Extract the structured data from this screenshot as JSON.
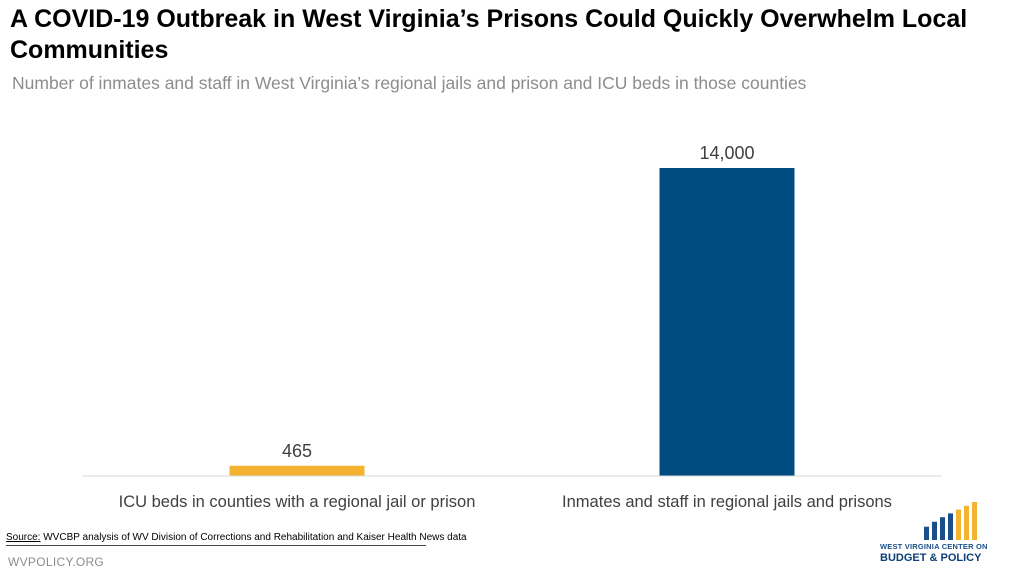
{
  "title": "A COVID-19 Outbreak in West Virginia’s Prisons Could Quickly Overwhelm Local Communities",
  "subtitle": "Number of inmates and staff in West Virginia’s regional jails and prison and ICU beds in those counties",
  "chart_data": {
    "type": "bar",
    "title": "A COVID-19 Outbreak in West Virginia’s Prisons Could Quickly Overwhelm Local Communities",
    "subtitle": "Number of inmates and staff in West Virginia’s regional jails and prison and ICU beds in those counties",
    "categories": [
      "ICU beds in counties with a regional jail or prison",
      "Inmates and staff in regional jails and prisons"
    ],
    "values": [
      465,
      14000
    ],
    "value_labels": [
      "465",
      "14,000"
    ],
    "colors": [
      "#f3b230",
      "#004b80"
    ],
    "xlabel": "",
    "ylabel": "",
    "ylim": [
      0,
      14000
    ],
    "grid": false,
    "legend": "none"
  },
  "footer": {
    "source_prefix": "Source:",
    "source_text": " WVCBP analysis of WV Division of Corrections and Rehabilitation and Kaiser Health News data",
    "website": "WVPOLICY.ORG"
  },
  "logo": {
    "line1": "WEST VIRGINIA CENTER ON",
    "line2": "BUDGET & POLICY",
    "bar_colors": [
      "#1b4f8a",
      "#1b4f8a",
      "#1b4f8a",
      "#1b4f8a",
      "#f3b230",
      "#f3b230",
      "#f3b230"
    ],
    "bar_levels": [
      0.35,
      0.48,
      0.6,
      0.7,
      0.8,
      0.9,
      1.0
    ]
  }
}
